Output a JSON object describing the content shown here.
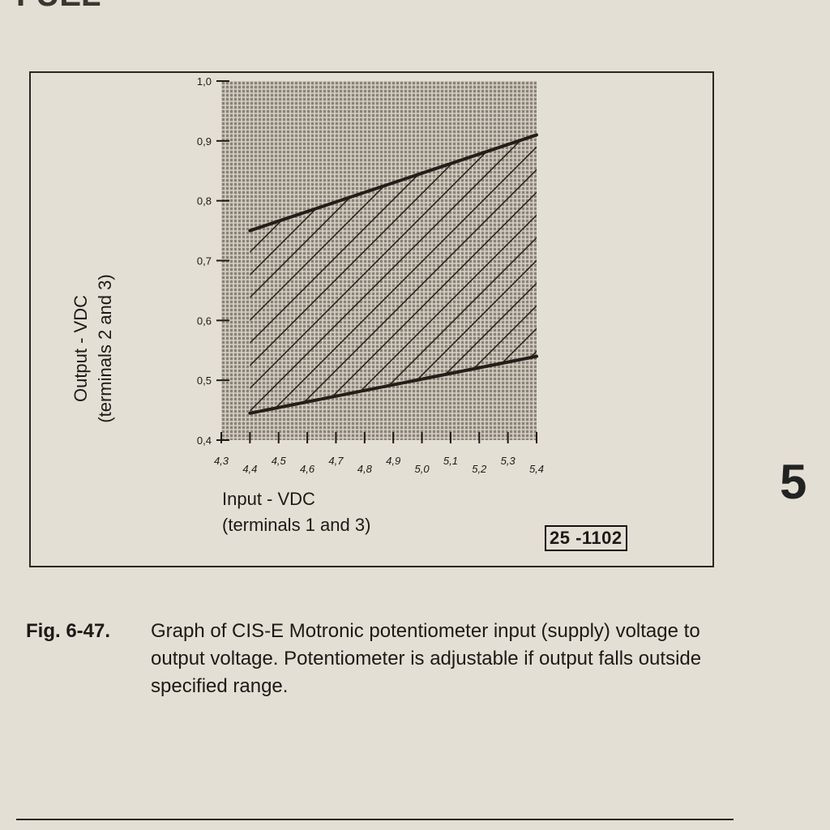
{
  "chart_data": {
    "type": "area",
    "title": "",
    "xlabel": "Input - VDC",
    "xlabel_sub": "(terminals 1 and 3)",
    "ylabel": "Output - VDC",
    "ylabel_sub": "(terminals 2 and 3)",
    "xlim": [
      4.3,
      5.4
    ],
    "ylim": [
      0.4,
      1.0
    ],
    "x_ticks": [
      "4,3",
      "4,4",
      "4,5",
      "4,6",
      "4,7",
      "4,8",
      "4,9",
      "5,0",
      "5,1",
      "5,2",
      "5,3",
      "5,4"
    ],
    "x_tick_values": [
      4.3,
      4.4,
      4.5,
      4.6,
      4.7,
      4.8,
      4.9,
      5.0,
      5.1,
      5.2,
      5.3,
      5.4
    ],
    "y_ticks": [
      "0,4",
      "0,5",
      "0,6",
      "0,7",
      "0,8",
      "0,9",
      "1,0"
    ],
    "y_tick_values": [
      0.4,
      0.5,
      0.6,
      0.7,
      0.8,
      0.9,
      1.0
    ],
    "grid": true,
    "series": [
      {
        "x": [
          4.4,
          5.4
        ],
        "values": [
          0.75,
          0.91
        ]
      },
      {
        "x": [
          4.4,
          5.4
        ],
        "values": [
          0.445,
          0.54
        ]
      }
    ],
    "figure_number": "25 -1102"
  },
  "caption": {
    "label": "Fig. 6-47.",
    "text": "Graph of CIS-E Motronic potentiometer input (supply) voltage to output voltage. Potentiometer is adjustable if output falls outside specified range."
  },
  "page": {
    "section_marker": "5",
    "top_fragment": "FUEL"
  }
}
